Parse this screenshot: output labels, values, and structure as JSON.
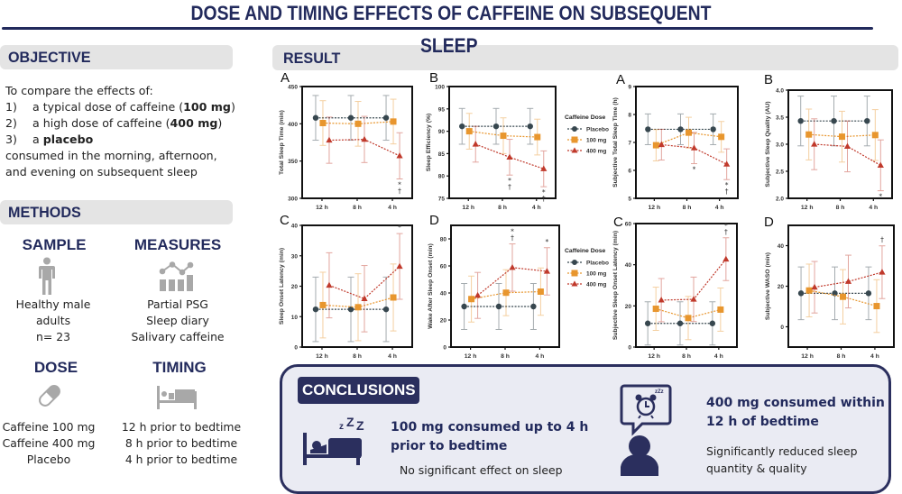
{
  "header": {
    "title_line1": "DOSE AND TIMING EFFECTS OF CAFFEINE ON SUBSEQUENT",
    "title_line2": "SLEEP"
  },
  "objective": {
    "heading": "OBJECTIVE",
    "intro": "To compare the effects of:",
    "items": [
      {
        "num": "1)",
        "pre": "a typical dose of caffeine (",
        "bold": "100 mg",
        "post": ")"
      },
      {
        "num": "2)",
        "pre": "a high dose of caffeine (",
        "bold": "400 mg",
        "post": ")"
      },
      {
        "num": "3)",
        "pre": "a ",
        "bold": "placebo",
        "post": ""
      }
    ],
    "outro_1": "consumed in the morning, afternoon,",
    "outro_2": "and evening on subsequent sleep"
  },
  "methods": {
    "heading": "METHODS",
    "sample": {
      "heading": "SAMPLE",
      "icon": "person-icon",
      "lines": [
        "Healthy male",
        "adults",
        "n= 23"
      ]
    },
    "measures": {
      "heading": "MEASURES",
      "icon": "chart-icon",
      "lines": [
        "Partial PSG",
        "Sleep diary",
        "Salivary caffeine"
      ]
    },
    "dose": {
      "heading": "DOSE",
      "icon": "pill-icon",
      "lines": [
        "Caffeine 100 mg",
        "Caffeine 400 mg",
        "Placebo"
      ]
    },
    "timing": {
      "heading": "TIMING",
      "icon": "bed-icon",
      "lines": [
        "12 h prior to bedtime",
        "8 h prior to bedtime",
        "4 h prior to bedtime"
      ]
    }
  },
  "result": {
    "heading": "RESULT",
    "legend_title": "Caffeine Dose",
    "series_colors": {
      "Placebo": "#37474f",
      "100 mg": "#e8962e",
      "400 mg": "#c0392b"
    }
  },
  "chart_data": [
    {
      "type": "line",
      "panel": "A",
      "ylabel": "Total Sleep Time (min)",
      "categories": [
        "12 h",
        "8 h",
        "4 h"
      ],
      "ylim": [
        300,
        450
      ],
      "yticks": [
        300,
        350,
        400,
        450
      ],
      "series": [
        {
          "name": "Placebo",
          "values": [
            408,
            408,
            408
          ],
          "err": [
            30,
            30,
            30
          ]
        },
        {
          "name": "100 mg",
          "values": [
            401,
            400,
            403
          ],
          "err": [
            30,
            30,
            30
          ]
        },
        {
          "name": "400 mg",
          "values": [
            378,
            379,
            357
          ],
          "err": [
            31,
            31,
            31
          ]
        }
      ],
      "annotations": [
        {
          "x": "4 h",
          "text": "*†"
        }
      ]
    },
    {
      "type": "line",
      "panel": "B",
      "ylabel": "Sleep Efficiency (%)",
      "categories": [
        "12 h",
        "8 h",
        "4 h"
      ],
      "ylim": [
        75,
        100
      ],
      "yticks": [
        75,
        80,
        85,
        90,
        95,
        100
      ],
      "series": [
        {
          "name": "Placebo",
          "values": [
            91.1,
            91.1,
            91.1
          ],
          "err": [
            4,
            4,
            4
          ]
        },
        {
          "name": "100 mg",
          "values": [
            90,
            89,
            88.7
          ],
          "err": [
            4,
            4,
            4
          ]
        },
        {
          "name": "400 mg",
          "values": [
            87.1,
            84.2,
            81.6
          ],
          "err": [
            4,
            4,
            4
          ]
        }
      ],
      "annotations": [
        {
          "x": "8 h",
          "text": "*†"
        },
        {
          "x": "4 h",
          "text": "*†"
        }
      ],
      "legend": "right"
    },
    {
      "type": "line",
      "panel": "A",
      "ylabel": "Subjective Total Sleep Time (h)",
      "categories": [
        "12 h",
        "8 h",
        "4 h"
      ],
      "ylim": [
        5,
        9
      ],
      "yticks": [
        5,
        6,
        7,
        8,
        9
      ],
      "series": [
        {
          "name": "Placebo",
          "values": [
            7.47,
            7.47,
            7.47
          ],
          "err": [
            0.55,
            0.55,
            0.55
          ]
        },
        {
          "name": "100 mg",
          "values": [
            6.9,
            7.35,
            7.2
          ],
          "err": [
            0.56,
            0.55,
            0.55
          ]
        },
        {
          "name": "400 mg",
          "values": [
            6.92,
            6.8,
            6.22
          ],
          "err": [
            0.55,
            0.56,
            0.55
          ]
        }
      ],
      "annotations": [
        {
          "x": "8 h",
          "text": "*"
        },
        {
          "x": "4 h",
          "text": "*†"
        }
      ]
    },
    {
      "type": "line",
      "panel": "B",
      "ylabel": "Subjective Sleep Quality (AU)",
      "categories": [
        "12 h",
        "8 h",
        "4 h"
      ],
      "ylim": [
        2,
        4
      ],
      "yticks": [
        2.0,
        2.5,
        3.0,
        3.5,
        4.0
      ],
      "series": [
        {
          "name": "Placebo",
          "values": [
            3.43,
            3.43,
            3.43
          ],
          "err": [
            0.46,
            0.46,
            0.46
          ]
        },
        {
          "name": "100 mg",
          "values": [
            3.18,
            3.14,
            3.17
          ],
          "err": [
            0.47,
            0.47,
            0.47
          ]
        },
        {
          "name": "400 mg",
          "values": [
            3.0,
            2.96,
            2.61
          ],
          "err": [
            0.47,
            0.47,
            0.47
          ]
        }
      ],
      "annotations": [
        {
          "x": "4 h",
          "text": "*"
        }
      ]
    },
    {
      "type": "line",
      "panel": "C",
      "ylabel": "Sleep Onset Latency (min)",
      "categories": [
        "12 h",
        "8 h",
        "4 h"
      ],
      "ylim": [
        0,
        40
      ],
      "yticks": [
        0,
        10,
        20,
        30,
        40
      ],
      "series": [
        {
          "name": "Placebo",
          "values": [
            12.4,
            12.4,
            12.4
          ],
          "err": [
            10.6,
            10.6,
            10.6
          ]
        },
        {
          "name": "100 mg",
          "values": [
            13.8,
            13.1,
            16.3
          ],
          "err": [
            10.8,
            11,
            11
          ]
        },
        {
          "name": "400 mg",
          "values": [
            20.3,
            15.9,
            26.5
          ],
          "err": [
            10.7,
            10.9,
            10.8
          ]
        }
      ],
      "annotations": [
        {
          "x": "4 h",
          "text": "*"
        }
      ]
    },
    {
      "type": "line",
      "panel": "D",
      "ylabel": "Wake After Sleep Onset (min)",
      "categories": [
        "12 h",
        "8 h",
        "4 h"
      ],
      "ylim": [
        0,
        90
      ],
      "yticks": [
        0,
        20,
        40,
        60,
        80
      ],
      "series": [
        {
          "name": "Placebo",
          "values": [
            30,
            30,
            30
          ],
          "err": [
            17,
            17,
            17
          ]
        },
        {
          "name": "100 mg",
          "values": [
            35.5,
            40.2,
            41
          ],
          "err": [
            17,
            17,
            17.5
          ]
        },
        {
          "name": "400 mg",
          "values": [
            38.2,
            58.8,
            56
          ],
          "err": [
            17,
            17.5,
            17.5
          ]
        }
      ],
      "annotations": [
        {
          "x": "8 h",
          "text": "*†"
        },
        {
          "x": "4 h",
          "text": "*"
        }
      ],
      "legend": "right"
    },
    {
      "type": "line",
      "panel": "C",
      "ylabel": "Subjective Sleep Onset Latency (min)",
      "categories": [
        "12 h",
        "8 h",
        "4 h"
      ],
      "ylim": [
        0,
        60
      ],
      "yticks": [
        0,
        20,
        40,
        60
      ],
      "series": [
        {
          "name": "Placebo",
          "values": [
            11.5,
            11.5,
            11.5
          ],
          "err": [
            10.5,
            10.5,
            10.5
          ]
        },
        {
          "name": "100 mg",
          "values": [
            18.6,
            14.1,
            18.2
          ],
          "err": [
            10.5,
            10.5,
            10.5
          ]
        },
        {
          "name": "400 mg",
          "values": [
            22.8,
            23.2,
            42.7
          ],
          "err": [
            10.5,
            10.8,
            10.4
          ]
        }
      ],
      "annotations": [
        {
          "x": "4 h",
          "text": "*†"
        }
      ]
    },
    {
      "type": "line",
      "panel": "D",
      "ylabel": "Subjective WASO (min)",
      "categories": [
        "12 h",
        "8 h",
        "4 h"
      ],
      "ylim": [
        -10,
        50
      ],
      "yticks": [
        0,
        20,
        40
      ],
      "series": [
        {
          "name": "Placebo",
          "values": [
            16.5,
            16.5,
            16.5
          ],
          "err": [
            13,
            13,
            13
          ]
        },
        {
          "name": "100 mg",
          "values": [
            17.9,
            14.8,
            10.2
          ],
          "err": [
            13,
            13.4,
            13
          ]
        },
        {
          "name": "400 mg",
          "values": [
            19.5,
            22.3,
            26.9
          ],
          "err": [
            12.7,
            13,
            13
          ]
        }
      ],
      "annotations": [
        {
          "x": "4 h",
          "text": "†"
        }
      ]
    }
  ],
  "conclusions": {
    "heading": "CONCLUSIONS",
    "left": {
      "icon": "sleeping-bed-icon",
      "zzz": "zZZ",
      "head_1": "100 mg consumed up to 4 h",
      "head_2": "prior to bedtime",
      "sub": "No significant effect on sleep"
    },
    "right": {
      "icon": "person-alarm-clock-icon",
      "head_1": "400 mg consumed within",
      "head_2": "12 h of bedtime",
      "sub_1": "Significantly reduced sleep",
      "sub_2": "quantity & quality"
    }
  }
}
